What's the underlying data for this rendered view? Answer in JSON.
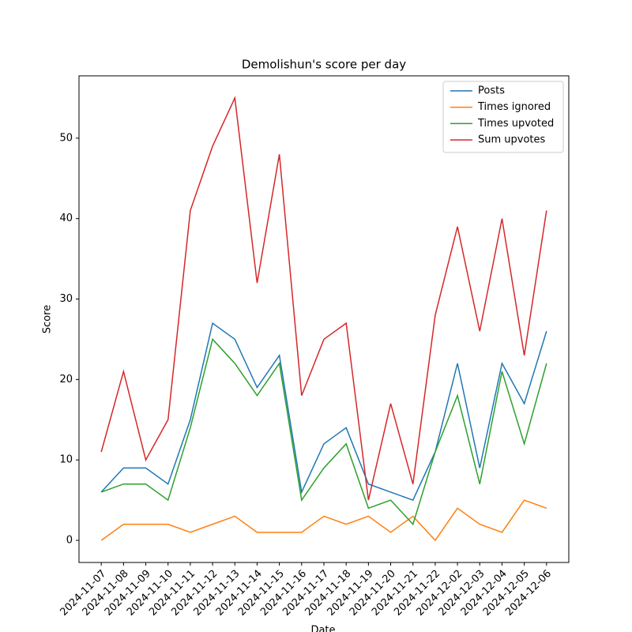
{
  "chart_data": {
    "type": "line",
    "title": "Demolishun's score per day",
    "xlabel": "Date",
    "ylabel": "Score",
    "categories": [
      "2024-11-07",
      "2024-11-08",
      "2024-11-09",
      "2024-11-10",
      "2024-11-11",
      "2024-11-12",
      "2024-11-13",
      "2024-11-14",
      "2024-11-15",
      "2024-11-16",
      "2024-11-17",
      "2024-11-18",
      "2024-11-19",
      "2024-11-20",
      "2024-11-21",
      "2024-11-22",
      "2024-12-02",
      "2024-12-03",
      "2024-12-04",
      "2024-12-05",
      "2024-12-06"
    ],
    "series": [
      {
        "name": "Posts",
        "color": "#1f77b4",
        "values": [
          6,
          9,
          9,
          7,
          15,
          27,
          25,
          19,
          23,
          6,
          12,
          14,
          7,
          6,
          5,
          11,
          22,
          9,
          22,
          17,
          26
        ]
      },
      {
        "name": "Times ignored",
        "color": "#ff7f0e",
        "values": [
          0,
          2,
          2,
          2,
          1,
          2,
          3,
          1,
          1,
          1,
          3,
          2,
          3,
          1,
          3,
          0,
          4,
          2,
          1,
          5,
          4
        ]
      },
      {
        "name": "Times upvoted",
        "color": "#2ca02c",
        "values": [
          6,
          7,
          7,
          5,
          14,
          25,
          22,
          18,
          22,
          5,
          9,
          12,
          4,
          5,
          2,
          11,
          18,
          7,
          21,
          12,
          22
        ]
      },
      {
        "name": "Sum upvotes",
        "color": "#d62728",
        "values": [
          11,
          21,
          10,
          15,
          41,
          49,
          55,
          32,
          48,
          18,
          25,
          27,
          5,
          17,
          7,
          28,
          39,
          26,
          40,
          23,
          41
        ]
      }
    ],
    "ylim": [
      -2.75,
      57.75
    ],
    "yticks": [
      0,
      10,
      20,
      30,
      40,
      50
    ],
    "legend": "upper right"
  }
}
